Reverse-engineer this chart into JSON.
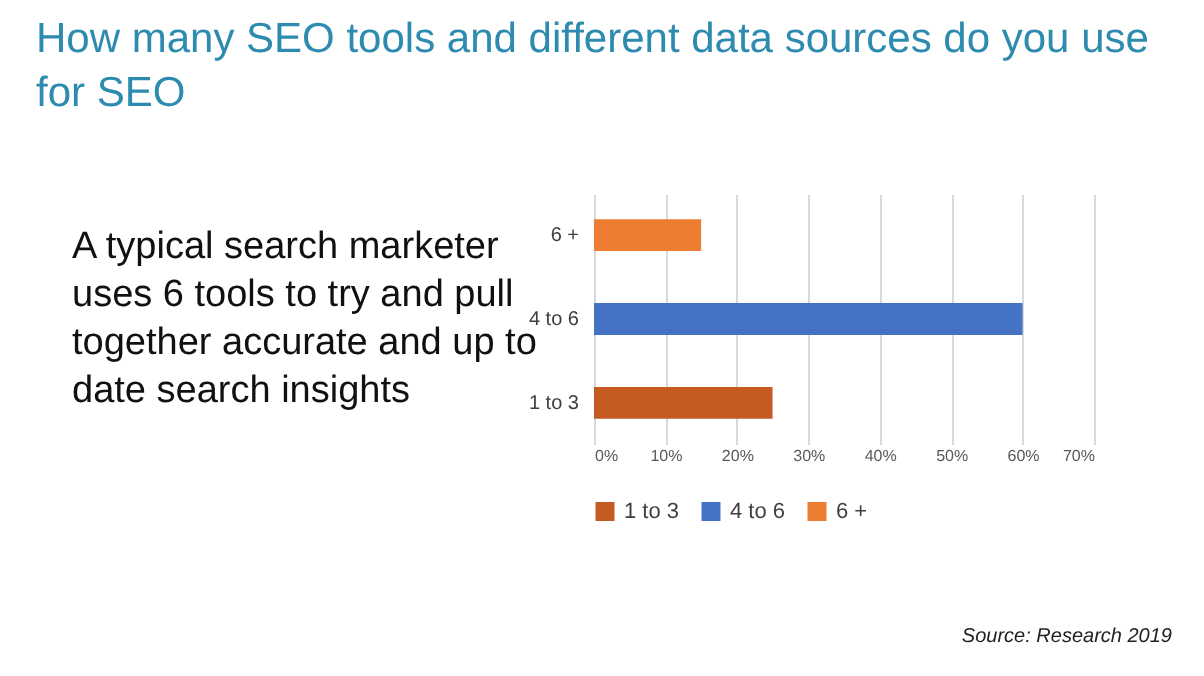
{
  "chart_data": {
    "type": "bar",
    "orientation": "horizontal",
    "stacked": true,
    "title": "How many SEO tools and different data sources do you use for SEO",
    "categories": [
      "6 +",
      "4 to 6",
      "1 to 3"
    ],
    "series": [
      {
        "name": "1 to 3",
        "color": "#c55a22",
        "values": [
          null,
          null,
          25
        ]
      },
      {
        "name": "4 to 6",
        "color": "#4472c4",
        "values": [
          null,
          60,
          null
        ]
      },
      {
        "name": "6 +",
        "color": "#ed7d31",
        "values": [
          15,
          null,
          null
        ]
      }
    ],
    "xlim": [
      0,
      70
    ],
    "xticks": [
      {
        "value": 0,
        "label": "0%"
      },
      {
        "value": 10,
        "label": "10%"
      },
      {
        "value": 20,
        "label": "20%"
      },
      {
        "value": 30,
        "label": "30%"
      },
      {
        "value": 40,
        "label": "40%"
      },
      {
        "value": 50,
        "label": "50%"
      },
      {
        "value": 60,
        "label": "60%"
      },
      {
        "value": 70,
        "label": "70%"
      }
    ],
    "grid": "x",
    "legend": "bottom",
    "annotations": [
      "A typical search marketer uses 6 tools to try and pull together accurate and up to date search insights",
      "Source: Research 2019"
    ]
  }
}
